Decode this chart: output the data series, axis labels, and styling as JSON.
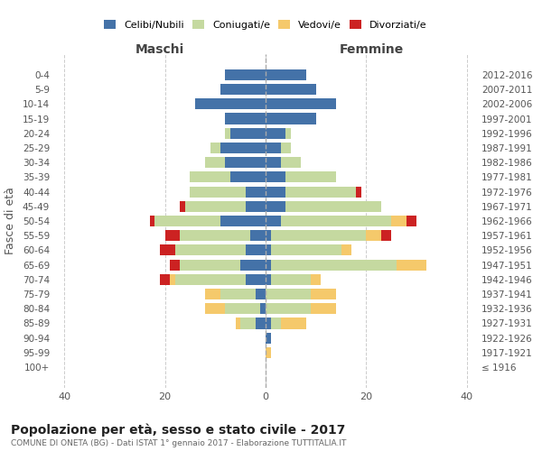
{
  "age_groups": [
    "100+",
    "95-99",
    "90-94",
    "85-89",
    "80-84",
    "75-79",
    "70-74",
    "65-69",
    "60-64",
    "55-59",
    "50-54",
    "45-49",
    "40-44",
    "35-39",
    "30-34",
    "25-29",
    "20-24",
    "15-19",
    "10-14",
    "5-9",
    "0-4"
  ],
  "birth_years": [
    "≤ 1916",
    "1917-1921",
    "1922-1926",
    "1927-1931",
    "1932-1936",
    "1937-1941",
    "1942-1946",
    "1947-1951",
    "1952-1956",
    "1957-1961",
    "1962-1966",
    "1967-1971",
    "1972-1976",
    "1977-1981",
    "1982-1986",
    "1987-1991",
    "1992-1996",
    "1997-2001",
    "2002-2006",
    "2007-2011",
    "2012-2016"
  ],
  "colors": {
    "celibe": "#4472a8",
    "coniugato": "#c5d9a0",
    "vedovo": "#f5c96b",
    "divorziato": "#cc2222"
  },
  "male": {
    "celibe": [
      0,
      0,
      0,
      2,
      1,
      2,
      4,
      5,
      4,
      3,
      9,
      4,
      4,
      7,
      8,
      9,
      7,
      8,
      14,
      9,
      8
    ],
    "coniugato": [
      0,
      0,
      0,
      3,
      7,
      7,
      14,
      12,
      14,
      14,
      13,
      12,
      11,
      8,
      4,
      2,
      1,
      0,
      0,
      0,
      0
    ],
    "vedovo": [
      0,
      0,
      0,
      1,
      4,
      3,
      1,
      0,
      0,
      0,
      0,
      0,
      0,
      0,
      0,
      0,
      0,
      0,
      0,
      0,
      0
    ],
    "divorziato": [
      0,
      0,
      0,
      0,
      0,
      0,
      2,
      2,
      3,
      3,
      1,
      1,
      0,
      0,
      0,
      0,
      0,
      0,
      0,
      0,
      0
    ]
  },
  "female": {
    "nubile": [
      0,
      0,
      1,
      1,
      0,
      0,
      1,
      1,
      1,
      1,
      3,
      4,
      4,
      4,
      3,
      3,
      4,
      10,
      14,
      10,
      8
    ],
    "coniugata": [
      0,
      0,
      0,
      2,
      9,
      9,
      8,
      25,
      14,
      19,
      22,
      19,
      14,
      10,
      4,
      2,
      1,
      0,
      0,
      0,
      0
    ],
    "vedova": [
      0,
      1,
      0,
      5,
      5,
      5,
      2,
      6,
      2,
      3,
      3,
      0,
      0,
      0,
      0,
      0,
      0,
      0,
      0,
      0,
      0
    ],
    "divorziata": [
      0,
      0,
      0,
      0,
      0,
      0,
      0,
      0,
      0,
      2,
      2,
      0,
      1,
      0,
      0,
      0,
      0,
      0,
      0,
      0,
      0
    ]
  },
  "xlim": 42,
  "title": "Popolazione per età, sesso e stato civile - 2017",
  "subtitle": "COMUNE DI ONETA (BG) - Dati ISTAT 1° gennaio 2017 - Elaborazione TUTTITALIA.IT",
  "ylabel_left": "Fasce di età",
  "xlabel_left": "Maschi",
  "xlabel_right": "Femmine",
  "legend_labels": [
    "Celibi/Nubili",
    "Coniugati/e",
    "Vedovi/e",
    "Divorziati/e"
  ]
}
